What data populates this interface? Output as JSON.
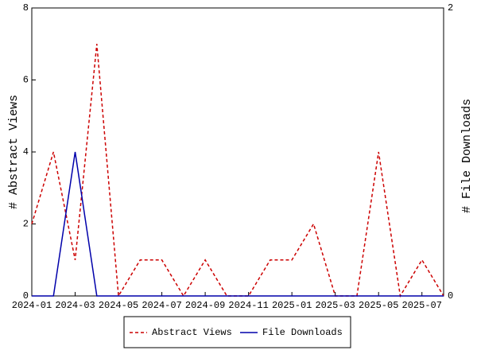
{
  "chart_data": {
    "type": "line",
    "x": [
      "2024-01",
      "2024-02",
      "2024-03",
      "2024-04",
      "2024-05",
      "2024-06",
      "2024-07",
      "2024-08",
      "2024-09",
      "2024-10",
      "2024-11",
      "2024-12",
      "2025-01",
      "2025-02",
      "2025-03",
      "2025-04",
      "2025-05",
      "2025-06",
      "2025-07",
      "2025-08"
    ],
    "xticks": [
      "2024-01",
      "2024-03",
      "2024-05",
      "2024-07",
      "2024-09",
      "2024-11",
      "2025-01",
      "2025-03",
      "2025-05",
      "2025-07"
    ],
    "ylabel": "# Abstract Views",
    "y2label": "# File Downloads",
    "ylim": [
      0,
      8
    ],
    "yticks": [
      0,
      2,
      4,
      6,
      8
    ],
    "y2lim": [
      0,
      2
    ],
    "y2ticks": [
      0,
      2
    ],
    "series": [
      {
        "name": "Abstract Views",
        "color": "#cc0000",
        "dash": true,
        "values": [
          2,
          4,
          1,
          7,
          0,
          1,
          1,
          0,
          1,
          0,
          0,
          1,
          1,
          2,
          0,
          0,
          4,
          0,
          1,
          0
        ]
      },
      {
        "name": "File Downloads",
        "color": "#0000aa",
        "dash": false,
        "axis": "y2",
        "values": [
          0,
          0,
          1,
          0,
          0,
          0,
          0,
          0,
          0,
          0,
          0,
          0,
          0,
          0,
          0,
          0,
          0,
          0,
          0,
          0
        ]
      }
    ],
    "legend": "bottom"
  }
}
